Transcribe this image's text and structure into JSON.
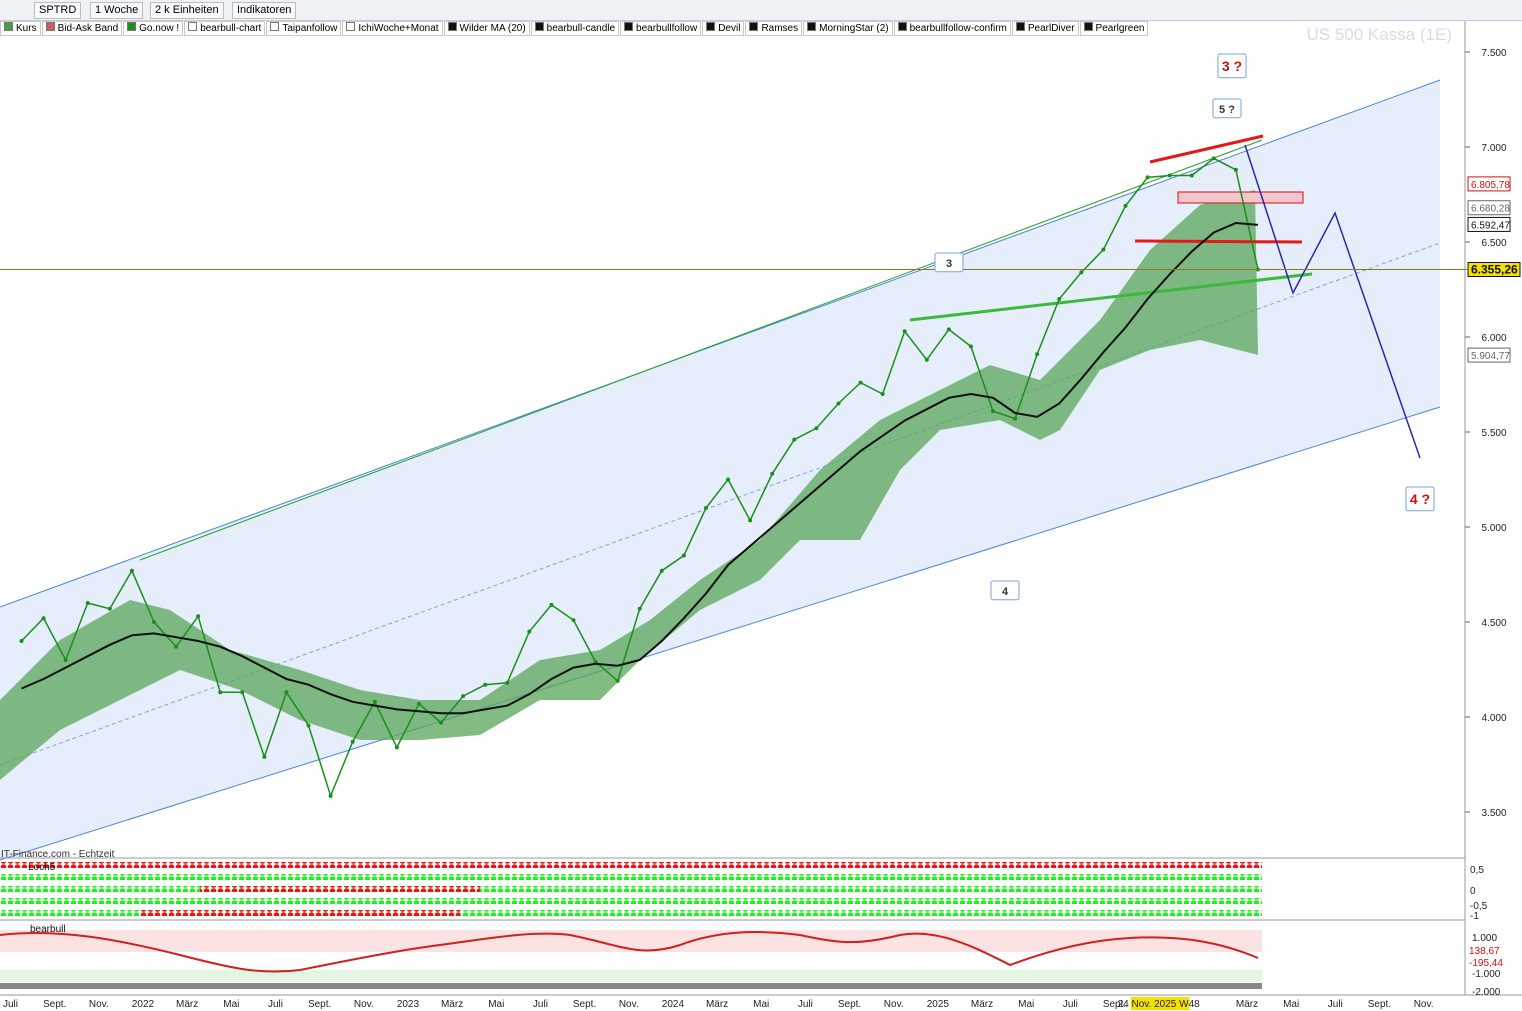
{
  "toolbar": {
    "symbol": "SPTRD",
    "period": "1 Woche",
    "units": "2 k Einheiten",
    "indicators": "Indikatoren"
  },
  "legend_items": [
    "Bid-Ask Band",
    "Go.now !",
    "bearbull-chart",
    "Taipanfollow",
    "IchiWoche+Monat",
    "bearbull-candle",
    "bearbullfollow",
    "Devil",
    "Ramses",
    "MorningStar (2)",
    "bearbullfollow-confirm",
    "PearlDiver",
    "Pearlgreen"
  ],
  "watermark": "US 500 Kassa (1E)",
  "source": "IT-Finance.com - Echtzeit",
  "chart_data": {
    "type": "line",
    "ylim": [
      3400,
      7600
    ],
    "yticks": [
      {
        "value": 7500,
        "label": "7.500"
      },
      {
        "value": 7000,
        "label": "7.000"
      },
      {
        "value": 6500,
        "label": "6.500"
      },
      {
        "value": 6000,
        "label": "6.000"
      },
      {
        "value": 5500,
        "label": "5.500"
      },
      {
        "value": 5000,
        "label": "5.000"
      },
      {
        "value": 4500,
        "label": "4.500"
      },
      {
        "value": 4000,
        "label": "4.000"
      },
      {
        "value": 3500,
        "label": "3.500"
      }
    ],
    "x_labels": [
      "Juli",
      "Sept.",
      "Nov.",
      "2022",
      "März",
      "Mai",
      "Juli",
      "Sept.",
      "Nov.",
      "2023",
      "März",
      "Mai",
      "Juli",
      "Sept.",
      "Nov.",
      "2024",
      "März",
      "Mai",
      "Juli",
      "Sept.",
      "Nov.",
      "2025",
      "März",
      "Mai",
      "Juli",
      "Sept.",
      "24 Nov. 2025 W48",
      "März",
      "Mai",
      "Juli",
      "Sept.",
      "Nov."
    ],
    "series": [
      {
        "name": "Kurs",
        "color": "#1a8f1a",
        "values": [
          4400,
          4520,
          4300,
          4600,
          4570,
          4770,
          4500,
          4370,
          4530,
          4130,
          4130,
          3790,
          4130,
          3955,
          3585,
          3870,
          4080,
          3840,
          4070,
          3970,
          4110,
          4170,
          4180,
          4450,
          4590,
          4510,
          4290,
          4190,
          4570,
          4770,
          4850,
          5100,
          5250,
          5035,
          5280,
          5460,
          5520,
          5650,
          5760,
          5700,
          6030,
          5880,
          6040,
          5950,
          5610,
          5570,
          5910,
          6200,
          6340,
          6460,
          6690,
          6840,
          6850,
          6850,
          6940,
          6880,
          6355.26
        ]
      },
      {
        "name": "Wilder MA (20)",
        "color": "#111111",
        "values": [
          4150,
          4200,
          4260,
          4320,
          4380,
          4430,
          4440,
          4420,
          4400,
          4370,
          4320,
          4260,
          4200,
          4170,
          4120,
          4080,
          4060,
          4040,
          4030,
          4020,
          4020,
          4040,
          4060,
          4120,
          4200,
          4260,
          4280,
          4270,
          4300,
          4400,
          4520,
          4650,
          4800,
          4900,
          5000,
          5100,
          5200,
          5300,
          5400,
          5480,
          5560,
          5620,
          5680,
          5700,
          5680,
          5600,
          5580,
          5650,
          5780,
          5920,
          6050,
          6200,
          6330,
          6450,
          6550,
          6600,
          6590
        ]
      }
    ],
    "price_markers": [
      {
        "value": 6805.78,
        "label": "6.805,78",
        "color": "#d01010"
      },
      {
        "value": 6680.28,
        "label": "6.680,28",
        "color": "#666666"
      },
      {
        "value": 6592.47,
        "label": "6.592,47",
        "color": "#111111"
      },
      {
        "value": 6355.26,
        "label": "6.355,26",
        "color": "#111111"
      },
      {
        "value": 5904.77,
        "label": "5.904,77",
        "color": "#666666"
      }
    ],
    "annotations": [
      {
        "text": "3 ?",
        "color": "#d01010"
      },
      {
        "text": "5 ?",
        "color": "#333333"
      },
      {
        "text": "3",
        "color": "#333333"
      },
      {
        "text": "4",
        "color": "#333333"
      },
      {
        "text": "4 ?",
        "color": "#d01010"
      }
    ]
  },
  "panes": {
    "loch": {
      "name": "Loch5",
      "ticks": [
        "0,5",
        "0",
        "-0,5",
        "-1"
      ]
    },
    "bearbull": {
      "name": "bearbull",
      "ticks": [
        "1.000",
        "-1.000",
        "-2.000"
      ],
      "markers": [
        "138,67",
        "-195,44"
      ]
    }
  }
}
